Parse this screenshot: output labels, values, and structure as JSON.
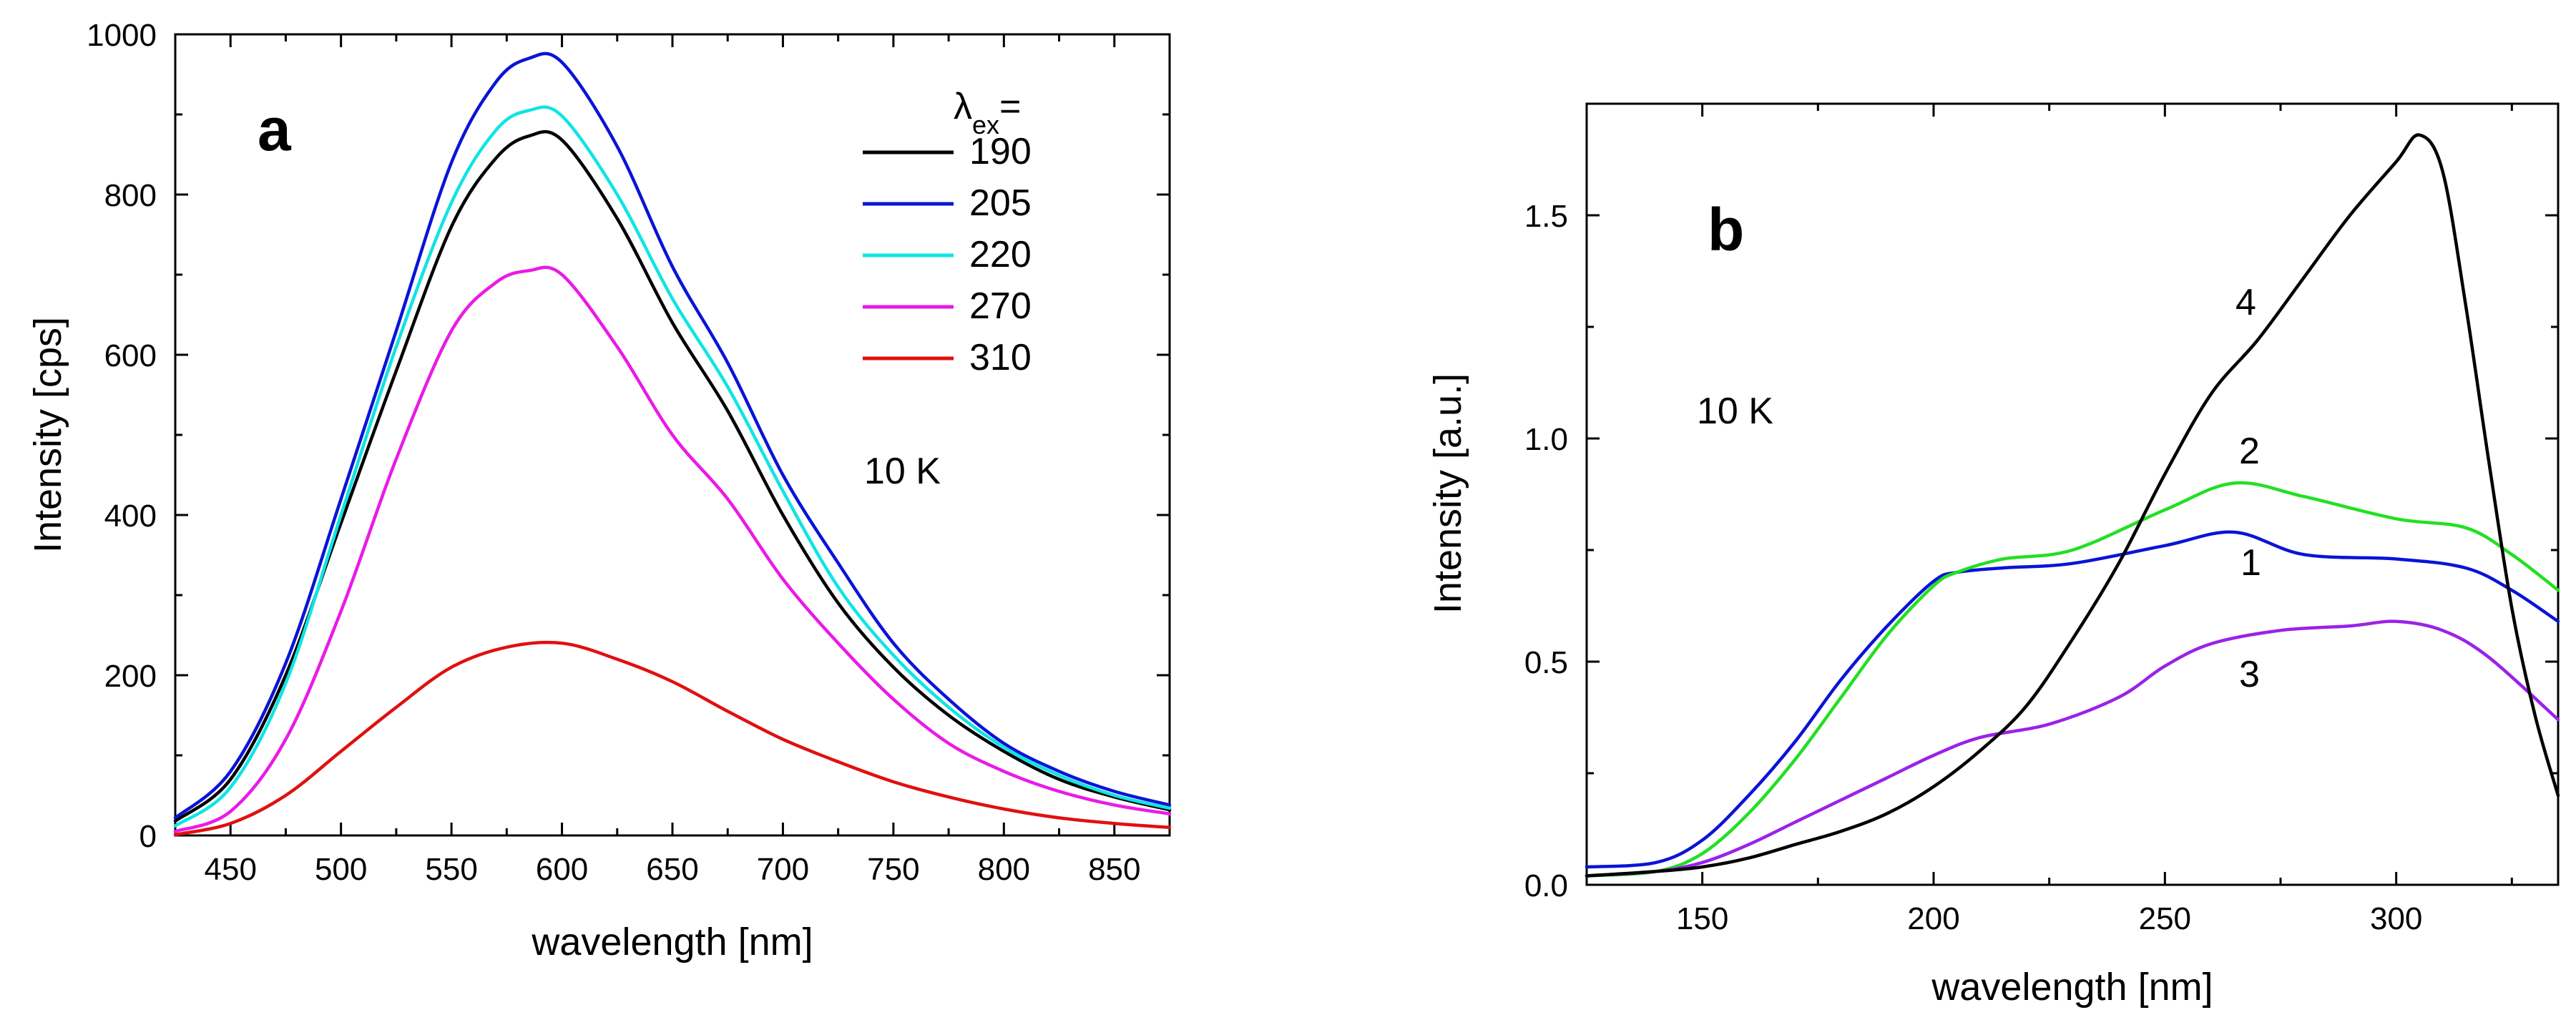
{
  "colors": {
    "black": "#000000",
    "blue": "#0a14d6",
    "cyan": "#10e4e4",
    "magenta": "#ea1ae6",
    "red": "#e01010",
    "green": "#22e022",
    "violet": "#9a22e8"
  },
  "chart_data": [
    {
      "id": "a",
      "type": "line",
      "panel_label": "a",
      "xlabel": "wavelength [nm]",
      "ylabel": "Intensity [cps]",
      "xlim": [
        425,
        875
      ],
      "ylim": [
        0,
        1000
      ],
      "xticks": [
        450,
        500,
        550,
        600,
        650,
        700,
        750,
        800,
        850
      ],
      "yticks": [
        0,
        200,
        400,
        600,
        800,
        1000
      ],
      "grid": false,
      "annotation": "10 K",
      "legend": {
        "title_main": "λ",
        "title_sub": "ex",
        "title_suffix": "=",
        "position": "top-right",
        "entries": [
          "190",
          "205",
          "220",
          "270",
          "310"
        ]
      },
      "series": [
        {
          "name": "190",
          "color": "#000000",
          "x": [
            425,
            450,
            475,
            500,
            525,
            550,
            570,
            585,
            600,
            625,
            650,
            675,
            700,
            725,
            750,
            775,
            800,
            825,
            850,
            875
          ],
          "y": [
            18,
            70,
            200,
            390,
            580,
            760,
            845,
            873,
            868,
            770,
            640,
            530,
            400,
            290,
            210,
            150,
            105,
            70,
            48,
            32
          ]
        },
        {
          "name": "205",
          "color": "#0a14d6",
          "x": [
            425,
            450,
            475,
            500,
            525,
            550,
            570,
            585,
            600,
            625,
            650,
            675,
            700,
            725,
            750,
            775,
            800,
            825,
            850,
            875
          ],
          "y": [
            22,
            80,
            215,
            420,
            630,
            840,
            940,
            970,
            965,
            860,
            710,
            590,
            450,
            340,
            240,
            170,
            115,
            80,
            55,
            38
          ]
        },
        {
          "name": "220",
          "color": "#10e4e4",
          "x": [
            425,
            450,
            475,
            500,
            525,
            550,
            570,
            585,
            600,
            625,
            650,
            675,
            700,
            725,
            750,
            775,
            800,
            825,
            850,
            875
          ],
          "y": [
            12,
            60,
            190,
            400,
            610,
            790,
            880,
            905,
            898,
            800,
            670,
            560,
            430,
            310,
            225,
            160,
            110,
            75,
            50,
            34
          ]
        },
        {
          "name": "270",
          "color": "#ea1ae6",
          "x": [
            425,
            450,
            475,
            500,
            525,
            550,
            570,
            585,
            600,
            625,
            650,
            675,
            700,
            725,
            750,
            775,
            800,
            825,
            850,
            875
          ],
          "y": [
            5,
            30,
            120,
            280,
            470,
            630,
            690,
            705,
            700,
            610,
            500,
            420,
            320,
            240,
            170,
            115,
            80,
            55,
            38,
            27
          ]
        },
        {
          "name": "310",
          "color": "#e01010",
          "x": [
            425,
            450,
            475,
            500,
            525,
            550,
            575,
            600,
            625,
            650,
            675,
            700,
            725,
            750,
            775,
            800,
            825,
            850,
            875
          ],
          "y": [
            1,
            15,
            50,
            105,
            160,
            210,
            235,
            240,
            220,
            192,
            155,
            120,
            92,
            67,
            48,
            33,
            22,
            15,
            10
          ]
        }
      ]
    },
    {
      "id": "b",
      "type": "line",
      "panel_label": "b",
      "xlabel": "wavelength [nm]",
      "ylabel": "Intensity [a.u.]",
      "xlim": [
        125,
        335
      ],
      "ylim": [
        0,
        1.75
      ],
      "xticks": [
        150,
        200,
        250,
        300
      ],
      "xtick_labels": [
        "150",
        "200",
        "250",
        "300"
      ],
      "yticks": [
        0,
        0.5,
        1.0,
        1.5
      ],
      "ytick_labels": [
        "0.0",
        "0.5",
        "1.0",
        "1.5"
      ],
      "grid": false,
      "annotation": "10 K",
      "curve_labels": [
        "1",
        "2",
        "3",
        "4"
      ],
      "series": [
        {
          "name": "1",
          "color": "#0a14d6",
          "x": [
            125,
            140,
            150,
            160,
            170,
            180,
            190,
            200,
            205,
            215,
            230,
            250,
            265,
            280,
            300,
            315,
            325,
            335
          ],
          "y": [
            0.04,
            0.05,
            0.1,
            0.2,
            0.32,
            0.46,
            0.58,
            0.68,
            0.7,
            0.71,
            0.72,
            0.76,
            0.79,
            0.74,
            0.73,
            0.71,
            0.66,
            0.59
          ]
        },
        {
          "name": "2",
          "color": "#22e022",
          "x": [
            125,
            140,
            150,
            160,
            170,
            180,
            190,
            200,
            205,
            215,
            230,
            250,
            265,
            280,
            300,
            315,
            325,
            335
          ],
          "y": [
            0.02,
            0.03,
            0.07,
            0.16,
            0.28,
            0.42,
            0.56,
            0.67,
            0.7,
            0.73,
            0.75,
            0.84,
            0.9,
            0.87,
            0.82,
            0.8,
            0.74,
            0.66
          ]
        },
        {
          "name": "3",
          "color": "#9a22e8",
          "x": [
            125,
            140,
            150,
            160,
            170,
            180,
            190,
            200,
            210,
            225,
            240,
            250,
            260,
            275,
            290,
            300,
            310,
            320,
            335
          ],
          "y": [
            0.02,
            0.03,
            0.05,
            0.09,
            0.14,
            0.19,
            0.24,
            0.29,
            0.33,
            0.36,
            0.42,
            0.49,
            0.54,
            0.57,
            0.58,
            0.59,
            0.57,
            0.51,
            0.37
          ]
        },
        {
          "name": "4",
          "color": "#000000",
          "x": [
            125,
            140,
            150,
            160,
            170,
            180,
            190,
            200,
            210,
            220,
            230,
            240,
            250,
            260,
            270,
            280,
            290,
            300,
            305,
            310,
            315,
            320,
            325,
            330,
            335
          ],
          "y": [
            0.02,
            0.03,
            0.04,
            0.06,
            0.09,
            0.12,
            0.16,
            0.22,
            0.3,
            0.4,
            0.55,
            0.72,
            0.92,
            1.1,
            1.22,
            1.36,
            1.5,
            1.62,
            1.68,
            1.6,
            1.3,
            0.95,
            0.62,
            0.38,
            0.2
          ]
        }
      ]
    }
  ]
}
